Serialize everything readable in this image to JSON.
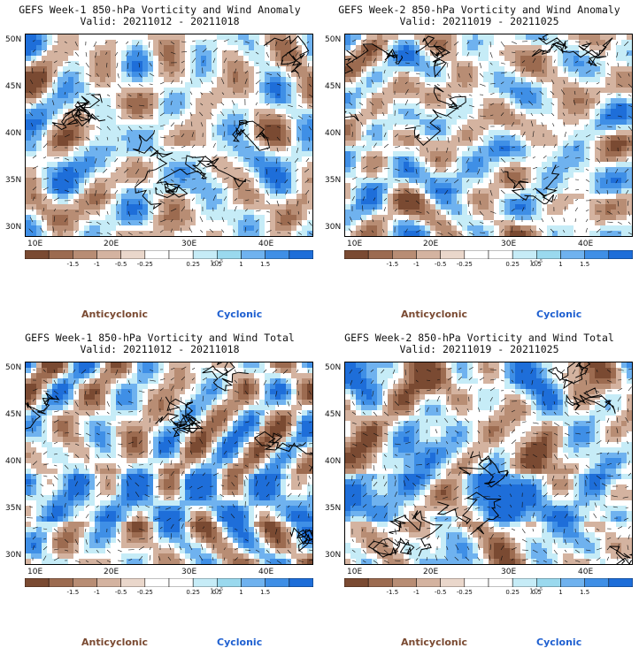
{
  "panels": [
    {
      "id": "p1",
      "title": "GEFS Week-1 850-hPa Vorticity and Wind Anomaly",
      "valid": "Valid: 20211012 - 20211018",
      "seed": 11
    },
    {
      "id": "p2",
      "title": "GEFS Week-2 850-hPa Vorticity and Wind Anomaly",
      "valid": "Valid: 20211019 - 20211025",
      "seed": 23
    },
    {
      "id": "p3",
      "title": "GEFS Week-1 850-hPa Vorticity and Wind Total",
      "valid": "Valid: 20211012 - 20211018",
      "seed": 37
    },
    {
      "id": "p4",
      "title": "GEFS Week-2 850-hPa Vorticity and Wind Total",
      "valid": "Valid: 20211019 - 20211025",
      "seed": 51
    }
  ],
  "axes": {
    "lat_labels": [
      "50N",
      "45N",
      "40N",
      "35N",
      "30N"
    ],
    "lon_labels": [
      "10E",
      "20E",
      "30E",
      "40E"
    ]
  },
  "colorbar": {
    "labels": [
      "-1.5",
      "-1",
      "-0.5",
      "-0.25",
      "0.25",
      "0.5",
      "1",
      "1.5"
    ],
    "exponent": "10",
    "exponent_sup": "-5",
    "colors": [
      "#7a4a32",
      "#9c6b50",
      "#b88d74",
      "#d4b3a0",
      "#ead7cb",
      "#ffffff",
      "#ffffff",
      "#c6ecf7",
      "#9ad9ee",
      "#6fb2ef",
      "#3f8fe6",
      "#1e6ed9"
    ]
  },
  "legend": {
    "anticyclonic": "Anticyclonic",
    "cyclonic": "Cyclonic"
  }
}
